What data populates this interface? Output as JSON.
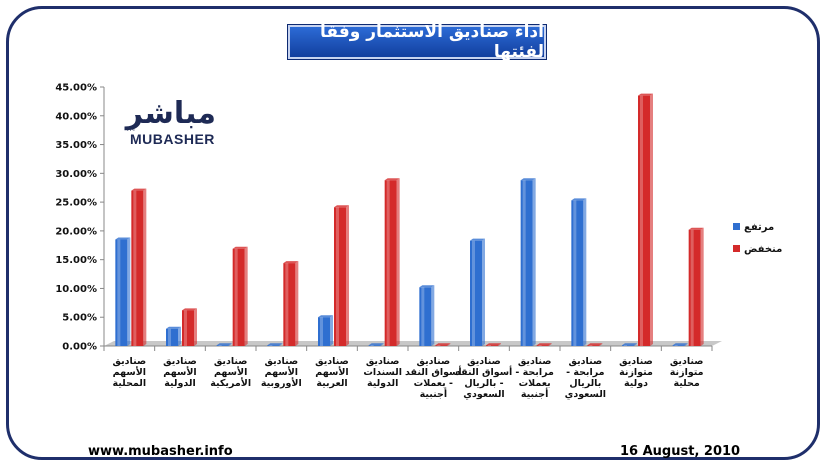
{
  "page": {
    "title": "اداء صناديق الاستثمار وفقا لفئتها",
    "logo_arabic": "مباشر",
    "logo_english": "MUBASHER",
    "logo_tm": "TM",
    "footer_url": "www.mubasher.info",
    "footer_date": "16 August, 2010"
  },
  "colors": {
    "frame": "#1f2f6b",
    "title_bg": "#1a4fb8",
    "series_high": "#2f6fd0",
    "series_low": "#d42a2a",
    "floor": "#c8c8c8"
  },
  "chart_data": {
    "type": "bar",
    "title": "اداء صناديق الاستثمار وفقا لفئتها",
    "xlabel": "",
    "ylabel": "",
    "ylim": [
      0,
      45
    ],
    "y_ticks": [
      "0.00%",
      "5.00%",
      "10.00%",
      "15.00%",
      "20.00%",
      "25.00%",
      "30.00%",
      "35.00%",
      "40.00%",
      "45.00%"
    ],
    "grid": false,
    "legend_position": "right",
    "categories": [
      [
        "صناديق",
        "الأسهم",
        "المحلية"
      ],
      [
        "صناديق",
        "الأسهم",
        "الدولية"
      ],
      [
        "صناديق",
        "الأسهم",
        "الأمريكية"
      ],
      [
        "صناديق",
        "الأسهم",
        "الأوروبية"
      ],
      [
        "صناديق",
        "الأسهم",
        "العربية"
      ],
      [
        "صناديق",
        "السندات",
        "الدولية"
      ],
      [
        "صناديق",
        "أسواق النقد",
        "- بعملات",
        "أجنبية"
      ],
      [
        "صناديق",
        "أسواق النقد",
        "- بالريال",
        "السعودي"
      ],
      [
        "صناديق",
        "مرابحة -",
        "بعملات",
        "أجنبية"
      ],
      [
        "صناديق",
        "مرابحة -",
        "بالريال",
        "السعودي"
      ],
      [
        "صناديق",
        "متوازنة",
        "دولية"
      ],
      [
        "صناديق",
        "متوازنة",
        "محلية"
      ]
    ],
    "series": [
      {
        "name": "مرتفع",
        "color": "#2f6fd0",
        "values": [
          18.5,
          3.0,
          0,
          0,
          5.0,
          0,
          10.2,
          18.3,
          28.8,
          25.3,
          0,
          0
        ]
      },
      {
        "name": "منخفض",
        "color": "#d42a2a",
        "values": [
          27.0,
          6.2,
          16.9,
          14.4,
          24.1,
          28.8,
          0,
          0,
          0,
          0,
          43.5,
          20.2
        ]
      }
    ]
  }
}
